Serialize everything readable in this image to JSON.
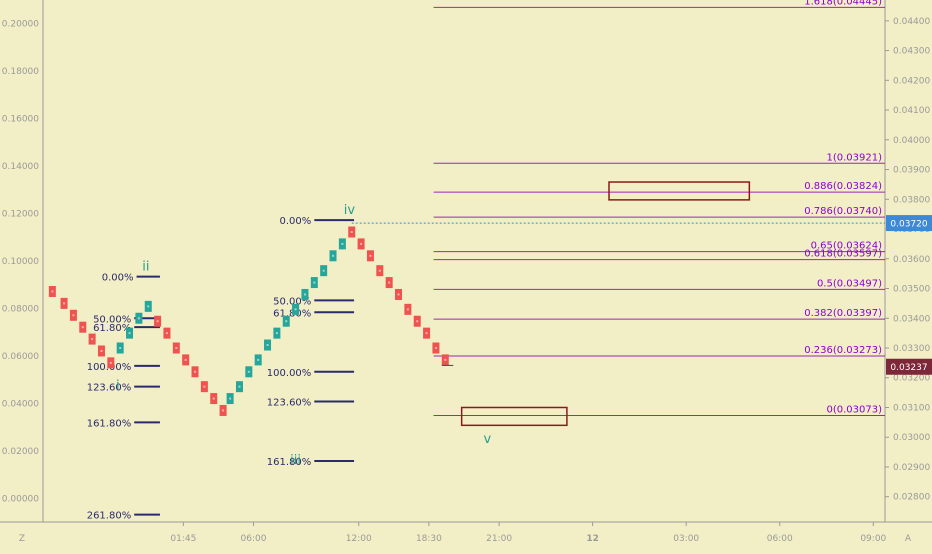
{
  "chart_data": {
    "type": "renko",
    "grid": false,
    "left_axis": {
      "range": [
        -0.01,
        0.21
      ],
      "ticks": [
        "0.20000",
        "0.18000",
        "0.16000",
        "0.14000",
        "0.12000",
        "0.10000",
        "0.08000",
        "0.06000",
        "0.04000",
        "0.02000",
        "0.00000"
      ]
    },
    "right_axis": {
      "range": [
        0.02715,
        0.0447
      ],
      "ticks": [
        "0.04400",
        "0.04300",
        "0.04200",
        "0.04100",
        "0.04000",
        "0.03900",
        "0.03800",
        "0.03700",
        "0.03600",
        "0.03500",
        "0.03400",
        "0.03300",
        "0.03200",
        "0.03100",
        "0.03000",
        "0.02900",
        "0.02800"
      ]
    },
    "x_axis": {
      "range": [
        0,
        36
      ],
      "ticks": [
        {
          "x": 6.0,
          "label": "01:45",
          "bold": false
        },
        {
          "x": 9.0,
          "label": "06:00",
          "bold": false
        },
        {
          "x": 13.5,
          "label": "12:00",
          "bold": false
        },
        {
          "x": 16.5,
          "label": "18:30",
          "bold": false
        },
        {
          "x": 19.5,
          "label": "21:00",
          "bold": false
        },
        {
          "x": 23.5,
          "label": "12",
          "bold": true
        },
        {
          "x": 27.5,
          "label": "03:00",
          "bold": false
        },
        {
          "x": 31.5,
          "label": "06:00",
          "bold": false
        },
        {
          "x": 35.5,
          "label": "09:00",
          "bold": false
        }
      ],
      "corner_left": "Z",
      "corner_right": "A"
    },
    "price_labels": [
      {
        "value": 0.0372,
        "text": "0.03720",
        "color": "#3b8ad9"
      },
      {
        "value": 0.03237,
        "text": "0.03237",
        "color": "#7d2738"
      }
    ],
    "current_price_line": 0.0372,
    "bricks": [
      {
        "x": 0.4,
        "y": 0.0349,
        "color": "red"
      },
      {
        "x": 0.9,
        "y": 0.0345,
        "color": "red"
      },
      {
        "x": 1.3,
        "y": 0.0341,
        "color": "red"
      },
      {
        "x": 1.7,
        "y": 0.0337,
        "color": "red"
      },
      {
        "x": 2.1,
        "y": 0.0333,
        "color": "red"
      },
      {
        "x": 2.5,
        "y": 0.0329,
        "color": "red"
      },
      {
        "x": 2.9,
        "y": 0.0325,
        "color": "red"
      },
      {
        "x": 3.3,
        "y": 0.033,
        "color": "green"
      },
      {
        "x": 3.7,
        "y": 0.0335,
        "color": "green"
      },
      {
        "x": 4.1,
        "y": 0.034,
        "color": "green"
      },
      {
        "x": 4.5,
        "y": 0.0344,
        "color": "green"
      },
      {
        "x": 4.9,
        "y": 0.0339,
        "color": "red"
      },
      {
        "x": 5.3,
        "y": 0.0335,
        "color": "red"
      },
      {
        "x": 5.7,
        "y": 0.033,
        "color": "red"
      },
      {
        "x": 6.1,
        "y": 0.0326,
        "color": "red"
      },
      {
        "x": 6.5,
        "y": 0.0322,
        "color": "red"
      },
      {
        "x": 6.9,
        "y": 0.0317,
        "color": "red"
      },
      {
        "x": 7.3,
        "y": 0.0313,
        "color": "red"
      },
      {
        "x": 7.7,
        "y": 0.0309,
        "color": "red"
      },
      {
        "x": 8.0,
        "y": 0.0313,
        "color": "green"
      },
      {
        "x": 8.4,
        "y": 0.0317,
        "color": "green"
      },
      {
        "x": 8.8,
        "y": 0.0322,
        "color": "green"
      },
      {
        "x": 9.2,
        "y": 0.0326,
        "color": "green"
      },
      {
        "x": 9.6,
        "y": 0.0331,
        "color": "green"
      },
      {
        "x": 10.0,
        "y": 0.0335,
        "color": "green"
      },
      {
        "x": 10.4,
        "y": 0.0339,
        "color": "green"
      },
      {
        "x": 10.8,
        "y": 0.0343,
        "color": "green"
      },
      {
        "x": 11.2,
        "y": 0.0348,
        "color": "green"
      },
      {
        "x": 11.6,
        "y": 0.0352,
        "color": "green"
      },
      {
        "x": 12.0,
        "y": 0.0356,
        "color": "green"
      },
      {
        "x": 12.4,
        "y": 0.0361,
        "color": "green"
      },
      {
        "x": 12.8,
        "y": 0.0365,
        "color": "green"
      },
      {
        "x": 13.2,
        "y": 0.0369,
        "color": "red"
      },
      {
        "x": 13.6,
        "y": 0.0365,
        "color": "red"
      },
      {
        "x": 14.0,
        "y": 0.0361,
        "color": "red"
      },
      {
        "x": 14.4,
        "y": 0.0356,
        "color": "red"
      },
      {
        "x": 14.8,
        "y": 0.0352,
        "color": "red"
      },
      {
        "x": 15.2,
        "y": 0.0348,
        "color": "red"
      },
      {
        "x": 15.6,
        "y": 0.0343,
        "color": "red"
      },
      {
        "x": 16.0,
        "y": 0.0339,
        "color": "red"
      },
      {
        "x": 16.4,
        "y": 0.0335,
        "color": "red"
      },
      {
        "x": 16.8,
        "y": 0.033,
        "color": "red"
      },
      {
        "x": 17.2,
        "y": 0.0326,
        "color": "red"
      }
    ],
    "wave_labels": [
      {
        "text": "ii",
        "x": 4.4,
        "y": 0.0356
      },
      {
        "text": "i",
        "x": 3.2,
        "y": 0.0316
      },
      {
        "text": "iv",
        "x": 13.1,
        "y": 0.0375
      },
      {
        "text": "iii",
        "x": 10.8,
        "y": 0.0291
      },
      {
        "text": "v",
        "x": 19.0,
        "y": 0.0298
      }
    ],
    "extension_levels": [
      {
        "label": "0.00%",
        "y": 0.0354,
        "x0": 4.0,
        "x1": 5.0
      },
      {
        "label": "50.00%",
        "y": 0.034,
        "x0": 3.9,
        "x1": 5.0
      },
      {
        "label": "61.80%",
        "y": 0.0337,
        "x0": 3.9,
        "x1": 5.0
      },
      {
        "label": "100.00%",
        "y": 0.0324,
        "x0": 3.9,
        "x1": 5.0
      },
      {
        "label": "123.60%",
        "y": 0.0317,
        "x0": 3.9,
        "x1": 5.0
      },
      {
        "label": "161.80%",
        "y": 0.0305,
        "x0": 3.9,
        "x1": 5.0
      },
      {
        "label": "261.80%",
        "y": 0.0274,
        "x0": 3.9,
        "x1": 5.0
      },
      {
        "label": "0.00%",
        "y": 0.0373,
        "x0": 11.6,
        "x1": 13.3
      },
      {
        "label": "50.00%",
        "y": 0.0346,
        "x0": 11.6,
        "x1": 13.3
      },
      {
        "label": "61.80%",
        "y": 0.0342,
        "x0": 11.6,
        "x1": 13.3
      },
      {
        "label": "100.00%",
        "y": 0.0322,
        "x0": 11.6,
        "x1": 13.3
      },
      {
        "label": "123.60%",
        "y": 0.0312,
        "x0": 11.6,
        "x1": 13.3
      },
      {
        "label": "161.80%",
        "y": 0.0292,
        "x0": 11.6,
        "x1": 13.3
      }
    ],
    "fib_retracement": {
      "x0": 16.7,
      "x1": 36.0,
      "levels": [
        {
          "label": "1.618(0.04445)",
          "value": 0.04445
        },
        {
          "label": "1(0.03921)",
          "value": 0.03921
        },
        {
          "label": "0.886(0.03824)",
          "value": 0.03824
        },
        {
          "label": "0.786(0.03740)",
          "value": 0.0374
        },
        {
          "label": "0.65(0.03624)",
          "value": 0.03624
        },
        {
          "label": "0.618(0.03597)",
          "value": 0.03597
        },
        {
          "label": "0.5(0.03497)",
          "value": 0.03497
        },
        {
          "label": "0.382(0.03397)",
          "value": 0.03397
        },
        {
          "label": "0.236(0.03273)",
          "value": 0.03273
        },
        {
          "label": "0(0.03073)",
          "value": 0.03073
        }
      ]
    },
    "target_boxes": [
      {
        "x0": 24.2,
        "x1": 30.2,
        "y0": 0.03798,
        "y1": 0.03858,
        "color": "#8b1a1a"
      },
      {
        "x0": 17.9,
        "x1": 22.4,
        "y0": 0.0304,
        "y1": 0.031,
        "color": "#8b1a1a"
      }
    ],
    "colors": {
      "background": "#f2efc6",
      "brick_up": "#26a69a",
      "brick_down": "#ef5350",
      "fib_line": "#9c27b0",
      "extension_line": "#2a2a6e",
      "wave_label": "#2a9d8f",
      "axis_text": "#9a9a9a"
    }
  }
}
